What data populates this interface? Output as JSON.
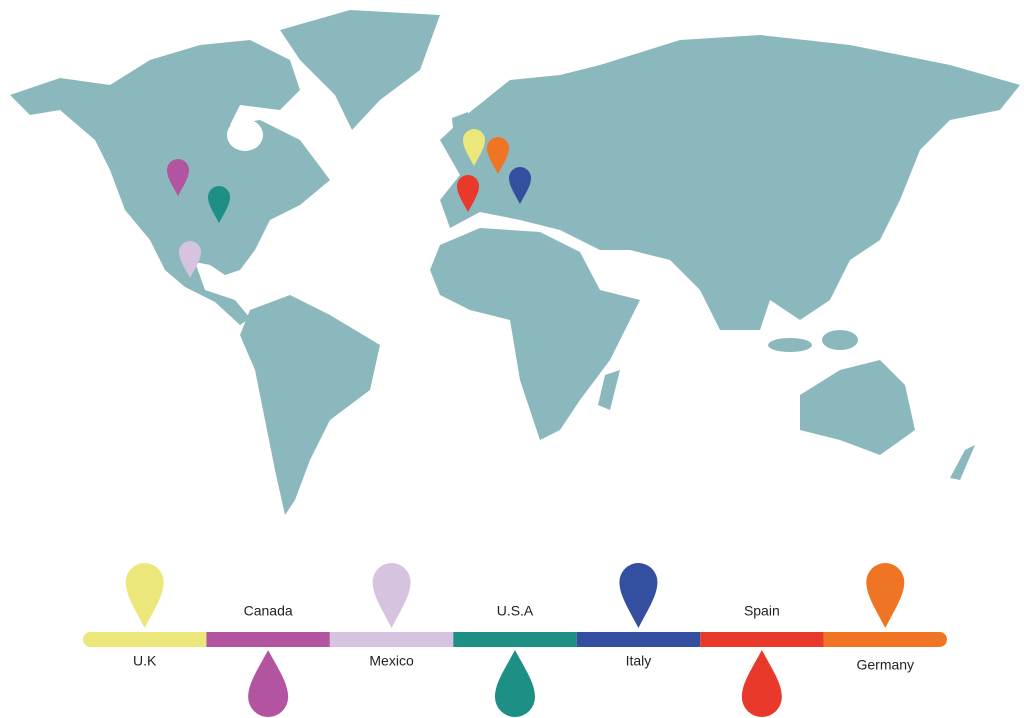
{
  "countries": [
    {
      "name": "U.K",
      "color": "#ece77a"
    },
    {
      "name": "Canada",
      "color": "#b254a0"
    },
    {
      "name": "Mexico",
      "color": "#d5c3df"
    },
    {
      "name": "U.S.A",
      "color": "#1e8f84"
    },
    {
      "name": "Italy",
      "color": "#344ea0"
    },
    {
      "name": "Spain",
      "color": "#e8392b"
    },
    {
      "name": "Germany",
      "color": "#ef7525"
    }
  ]
}
